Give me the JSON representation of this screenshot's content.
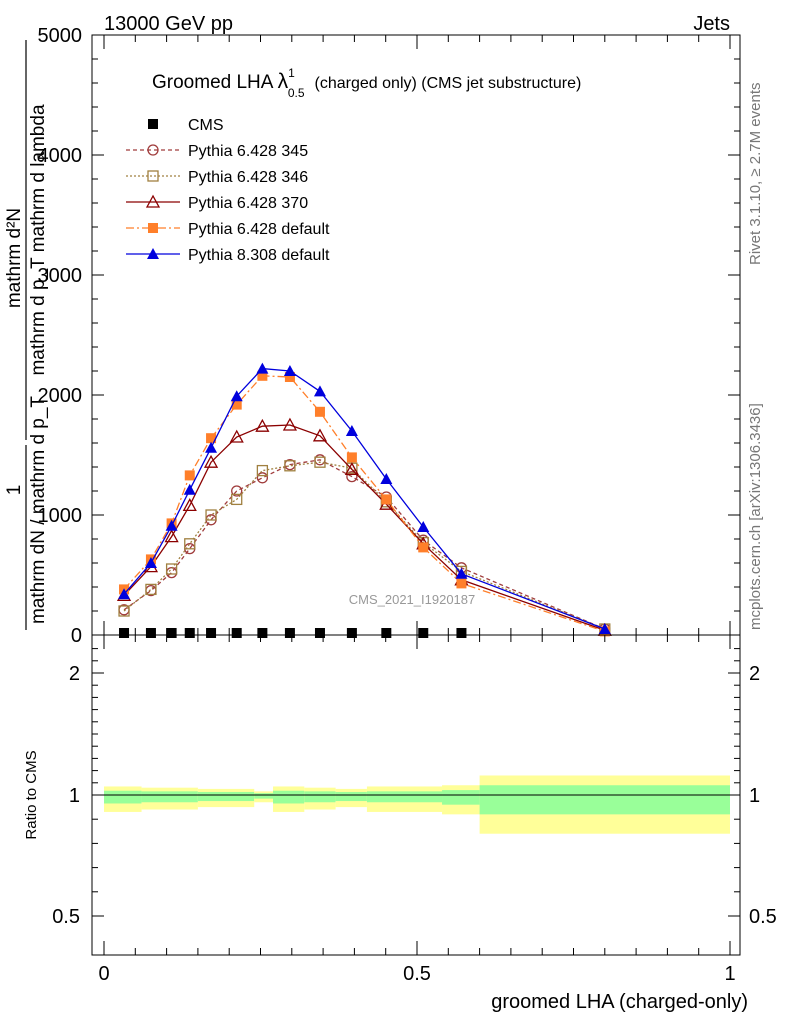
{
  "header": {
    "left": "13000 GeV pp",
    "right": "Jets"
  },
  "side_labels": {
    "rivet": "Rivet 3.1.10, ≥ 2.7M events",
    "mcplots": "mcplots.cern.ch [arXiv:1306.3436]"
  },
  "watermark": "CMS_2021_I1920187",
  "chart_data": [
    {
      "type": "line",
      "panel": "main",
      "title": {
        "prefix": "Groomed LHA ",
        "symbol": "λ",
        "superscript": "1",
        "subscript": "0.5",
        "suffix": "(charged only) (CMS jet substructure)"
      },
      "ylabel": {
        "numerator": "mathrm d²N",
        "denominator": "mathrm d p_T mathrm d lambda",
        "lower_numerator": "1",
        "lower_denominator": "mathrm dN / mathrm d p_T"
      },
      "ylim": [
        0,
        5000
      ],
      "yticks": [
        0,
        1000,
        2000,
        3000,
        4000,
        5000
      ],
      "ytick_labels": [
        "0",
        "1000",
        "2000",
        "3000",
        "4000",
        "5000"
      ],
      "xlim": [
        0,
        1
      ],
      "grid": false,
      "legend_placement": "top-left",
      "x": [
        0.032,
        0.075,
        0.108,
        0.137,
        0.171,
        0.212,
        0.253,
        0.297,
        0.345,
        0.396,
        0.451,
        0.51,
        0.571,
        0.8
      ],
      "series": [
        {
          "name": "CMS",
          "color": "#000000",
          "marker": "filled-square",
          "values": [
            0,
            0,
            0,
            0,
            0,
            0,
            0,
            0,
            0,
            0,
            0,
            0,
            0,
            null
          ]
        },
        {
          "name": "Pythia 6.428 345",
          "color": "#a03c3c",
          "marker": "open-circle",
          "dash": "4,3",
          "values": [
            210,
            370,
            520,
            720,
            960,
            1200,
            1310,
            1420,
            1460,
            1320,
            1150,
            790,
            560,
            50
          ]
        },
        {
          "name": "Pythia 6.428 346",
          "color": "#a08040",
          "marker": "open-square",
          "dash": "2,2",
          "values": [
            200,
            380,
            550,
            760,
            1000,
            1130,
            1370,
            1410,
            1440,
            1390,
            1110,
            770,
            530,
            50
          ]
        },
        {
          "name": "Pythia 6.428 370",
          "color": "#8b0000",
          "marker": "open-triangle",
          "dash": "",
          "values": [
            330,
            570,
            820,
            1080,
            1440,
            1650,
            1740,
            1750,
            1660,
            1380,
            1090,
            760,
            460,
            40
          ]
        },
        {
          "name": "Pythia 6.428 default",
          "color": "#ff7f2a",
          "marker": "filled-square",
          "dash": "8,3,2,3",
          "values": [
            380,
            630,
            930,
            1330,
            1640,
            1920,
            2160,
            2150,
            1860,
            1480,
            1130,
            730,
            430,
            30
          ]
        },
        {
          "name": "Pythia 8.308 default",
          "color": "#0000dd",
          "marker": "filled-triangle",
          "dash": "",
          "values": [
            340,
            600,
            910,
            1210,
            1560,
            1990,
            2220,
            2200,
            2030,
            1700,
            1300,
            900,
            510,
            50
          ]
        }
      ]
    },
    {
      "type": "area",
      "panel": "ratio",
      "ylabel": "Ratio to CMS",
      "xlabel": "groomed LHA (charged-only)",
      "xlim": [
        0,
        1
      ],
      "xticks": [
        0,
        0.5,
        1
      ],
      "xtick_labels": [
        "0",
        "0.5",
        "1"
      ],
      "ylim": [
        0.4,
        2.4
      ],
      "yticks": [
        0.5,
        1,
        2
      ],
      "ytick_labels": [
        "0.5",
        "1",
        "2"
      ],
      "reference_line": 1,
      "inner_band_color": "#99ff99",
      "outer_band_color": "#ffff99",
      "bin_edges": [
        0,
        0.06,
        0.15,
        0.24,
        0.27,
        0.32,
        0.37,
        0.42,
        0.54,
        0.6,
        1.0
      ],
      "inner_low": [
        0.965,
        0.97,
        0.975,
        0.985,
        0.965,
        0.97,
        0.975,
        0.97,
        0.96,
        0.92
      ],
      "inner_high": [
        1.035,
        1.03,
        1.025,
        1.015,
        1.035,
        1.03,
        1.025,
        1.03,
        1.04,
        1.08
      ],
      "outer_low": [
        0.93,
        0.94,
        0.95,
        0.97,
        0.93,
        0.94,
        0.95,
        0.93,
        0.92,
        0.84
      ],
      "outer_high": [
        1.07,
        1.06,
        1.05,
        1.03,
        1.07,
        1.06,
        1.05,
        1.07,
        1.08,
        1.16
      ]
    }
  ]
}
